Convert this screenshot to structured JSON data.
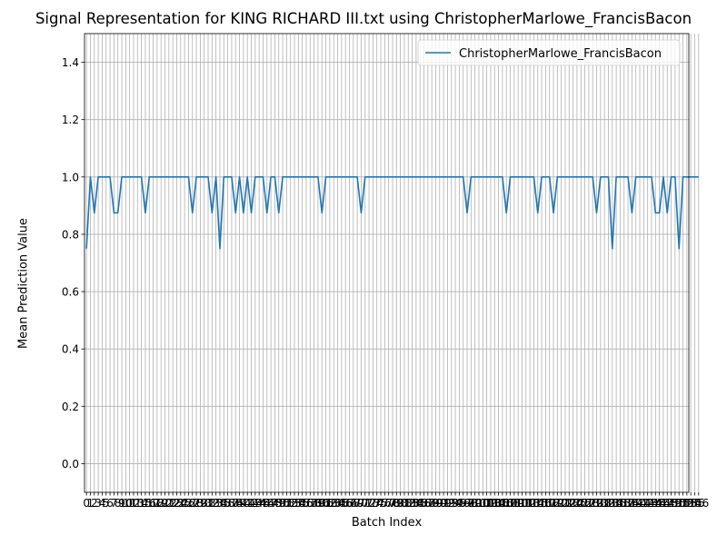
{
  "chart_data": {
    "type": "line",
    "title": "Signal Representation for KING RICHARD III.txt using ChristopherMarlowe_FrancisBacon",
    "xlabel": "Batch Index",
    "ylabel": "Mean Prediction Value",
    "ylim": [
      -0.1,
      1.5
    ],
    "xlim": [
      -0.5,
      153.5
    ],
    "yticks": [
      0.0,
      0.2,
      0.4,
      0.6,
      0.8,
      1.0,
      1.2,
      1.4
    ],
    "ytick_labels": [
      "0.0",
      "0.2",
      "0.4",
      "0.6",
      "0.8",
      "1.0",
      "1.2",
      "1.4"
    ],
    "grid": true,
    "legend_position": "top-right",
    "series": [
      {
        "name": "ChristopherMarlowe_FrancisBacon",
        "color": "#1f77b4",
        "values": [
          0.75,
          1.0,
          0.875,
          1.0,
          1.0,
          1.0,
          1.0,
          0.875,
          0.875,
          1.0,
          1.0,
          1.0,
          1.0,
          1.0,
          1.0,
          0.875,
          1.0,
          1.0,
          1.0,
          1.0,
          1.0,
          1.0,
          1.0,
          1.0,
          1.0,
          1.0,
          1.0,
          0.875,
          1.0,
          1.0,
          1.0,
          1.0,
          0.875,
          1.0,
          0.75,
          1.0,
          1.0,
          1.0,
          0.875,
          1.0,
          0.875,
          1.0,
          0.875,
          1.0,
          1.0,
          1.0,
          0.875,
          1.0,
          1.0,
          0.875,
          1.0,
          1.0,
          1.0,
          1.0,
          1.0,
          1.0,
          1.0,
          1.0,
          1.0,
          1.0,
          0.875,
          1.0,
          1.0,
          1.0,
          1.0,
          1.0,
          1.0,
          1.0,
          1.0,
          1.0,
          0.875,
          1.0,
          1.0,
          1.0,
          1.0,
          1.0,
          1.0,
          1.0,
          1.0,
          1.0,
          1.0,
          1.0,
          1.0,
          1.0,
          1.0,
          1.0,
          1.0,
          1.0,
          1.0,
          1.0,
          1.0,
          1.0,
          1.0,
          1.0,
          1.0,
          1.0,
          1.0,
          0.875,
          1.0,
          1.0,
          1.0,
          1.0,
          1.0,
          1.0,
          1.0,
          1.0,
          1.0,
          0.875,
          1.0,
          1.0,
          1.0,
          1.0,
          1.0,
          1.0,
          1.0,
          0.875,
          1.0,
          1.0,
          1.0,
          0.875,
          1.0,
          1.0,
          1.0,
          1.0,
          1.0,
          1.0,
          1.0,
          1.0,
          1.0,
          1.0,
          0.875,
          1.0,
          1.0,
          1.0,
          0.75,
          1.0,
          1.0,
          1.0,
          1.0,
          0.875,
          1.0,
          1.0,
          1.0,
          1.0,
          1.0,
          0.875,
          0.875,
          1.0,
          0.875,
          1.0,
          1.0,
          0.75,
          1.0,
          1.0,
          1.0,
          1.0,
          1.0
        ]
      }
    ]
  }
}
